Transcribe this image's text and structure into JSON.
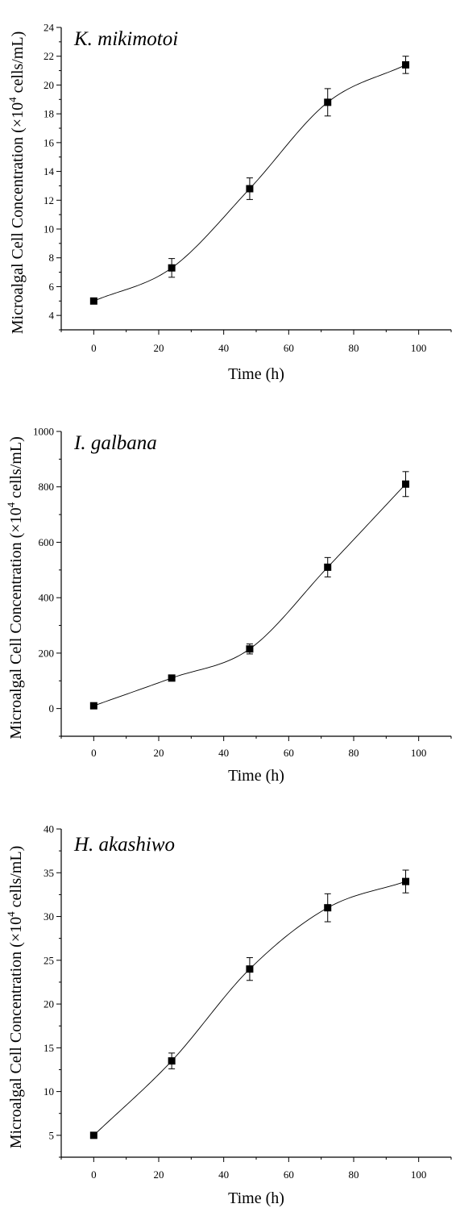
{
  "figure": {
    "panels": [
      {
        "id": "panel-k-mikimotoi",
        "title": "K. mikimotoi",
        "xlabel": "Time (h)",
        "ylabel": {
          "main": "Microalgal Cell Concentration (×10",
          "sup": "4",
          "tail": " cells/mL)"
        }
      },
      {
        "id": "panel-i-galbana",
        "title": "I. galbana",
        "xlabel": "Time (h)",
        "ylabel": {
          "main": "Microalgal Cell Concentration (×10",
          "sup": "4",
          "tail": " cells/mL)"
        }
      },
      {
        "id": "panel-h-akashiwo",
        "title": "H. akashiwo",
        "xlabel": "Time (h)",
        "ylabel": {
          "main": "Microalgal Cell Concentration (×10",
          "sup": "4",
          "tail": " cells/mL)"
        }
      }
    ]
  },
  "chart_data": [
    {
      "type": "scatter",
      "title": "K. mikimotoi",
      "xlabel": "Time (h)",
      "ylabel": "Microalgal Cell Concentration (×10^4 cells/mL)",
      "xlim": [
        -10,
        110
      ],
      "ylim": [
        3,
        24
      ],
      "xticks": [
        0,
        20,
        40,
        60,
        80,
        100
      ],
      "yticks": [
        4,
        6,
        8,
        10,
        12,
        14,
        16,
        18,
        20,
        22,
        24
      ],
      "x": [
        0,
        24,
        48,
        72,
        96
      ],
      "y": [
        5.0,
        7.3,
        12.8,
        18.8,
        21.4
      ],
      "error": [
        0.1,
        0.65,
        0.75,
        0.95,
        0.6
      ],
      "fit_curve": true,
      "grid": false
    },
    {
      "type": "scatter",
      "title": "I. galbana",
      "xlabel": "Time (h)",
      "ylabel": "Microalgal Cell Concentration (×10^4 cells/mL)",
      "xlim": [
        -10,
        110
      ],
      "ylim": [
        -100,
        1000
      ],
      "xticks": [
        0,
        20,
        40,
        60,
        80,
        100
      ],
      "yticks": [
        0,
        200,
        400,
        600,
        800,
        1000
      ],
      "x": [
        0,
        24,
        48,
        72,
        96
      ],
      "y": [
        10,
        110,
        215,
        510,
        810
      ],
      "error": [
        5,
        8,
        18,
        35,
        45
      ],
      "fit_curve": true,
      "grid": false
    },
    {
      "type": "scatter",
      "title": "H. akashiwo",
      "xlabel": "Time (h)",
      "ylabel": "Microalgal Cell Concentration (×10^4 cells/mL)",
      "xlim": [
        -10,
        110
      ],
      "ylim": [
        2.5,
        40
      ],
      "xticks": [
        0,
        20,
        40,
        60,
        80,
        100
      ],
      "yticks": [
        5,
        10,
        15,
        20,
        25,
        30,
        35,
        40
      ],
      "x": [
        0,
        24,
        48,
        72,
        96
      ],
      "y": [
        5.0,
        13.5,
        24.0,
        31.0,
        34.0
      ],
      "error": [
        0.2,
        0.9,
        1.3,
        1.6,
        1.3
      ],
      "fit_curve": true,
      "grid": false
    }
  ]
}
